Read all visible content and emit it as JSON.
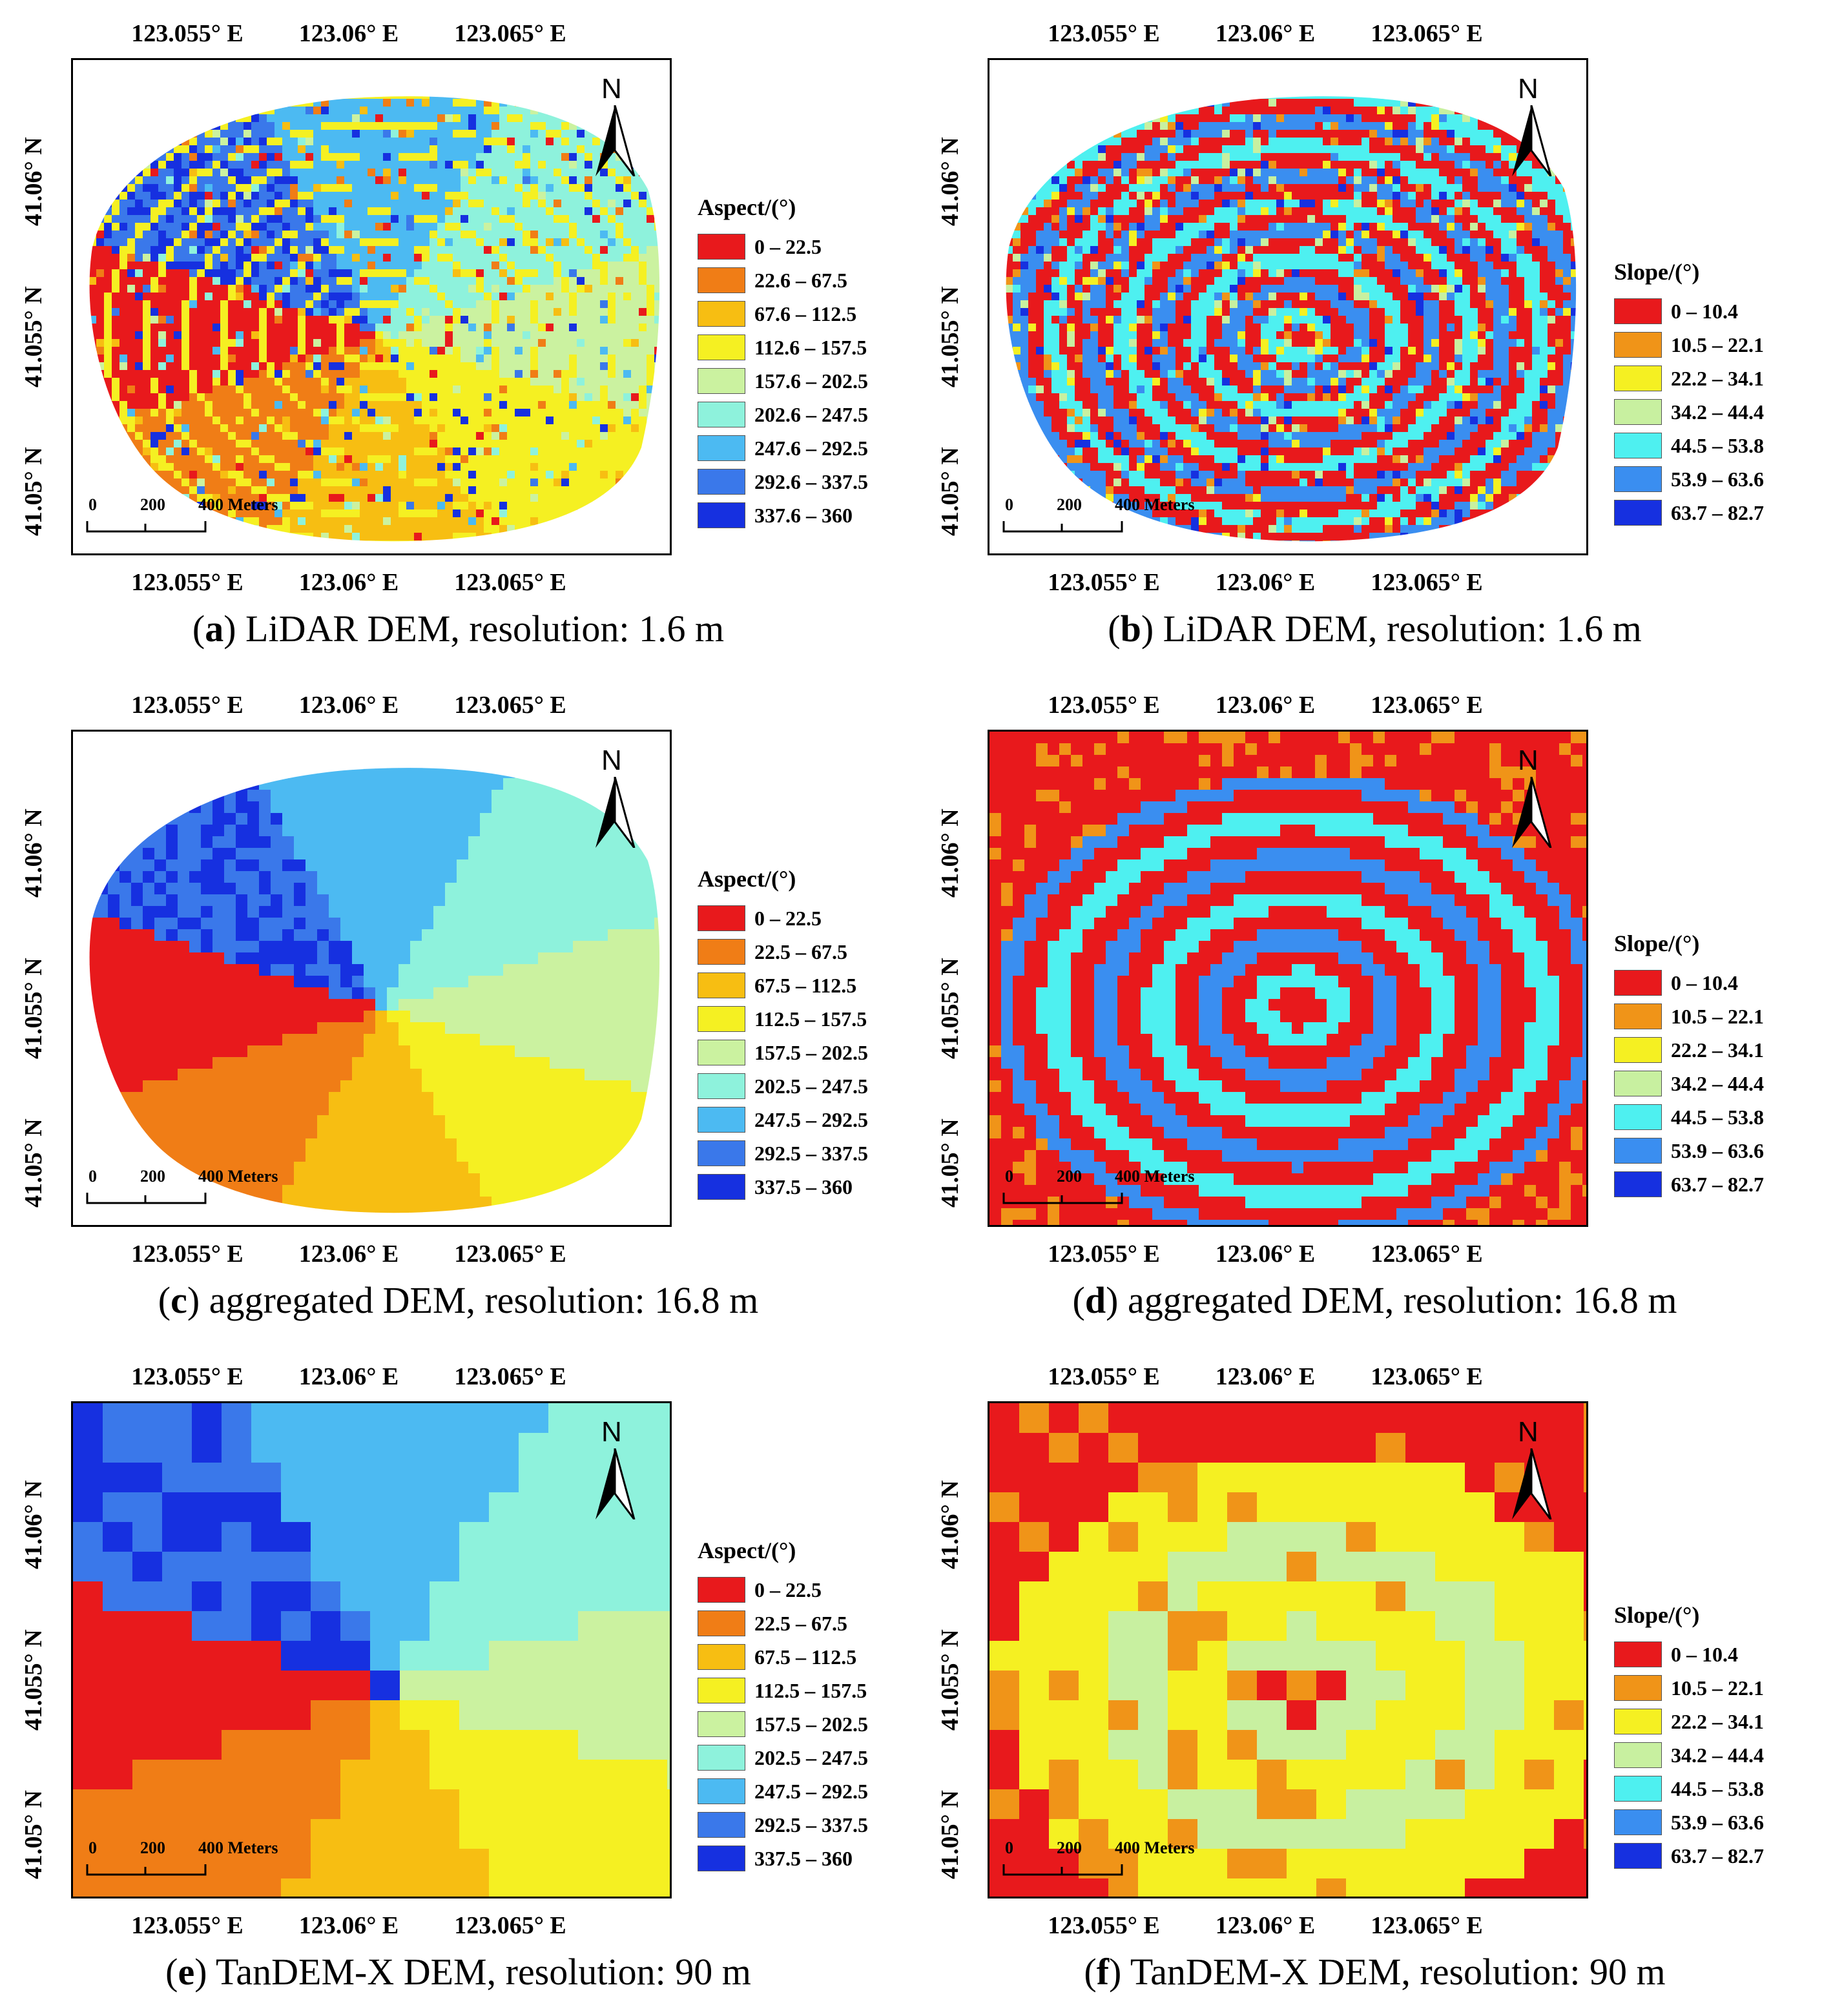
{
  "axes": {
    "x_ticks": [
      "123.055° E",
      "123.06° E",
      "123.065° E"
    ],
    "y_ticks": [
      "41.06° N",
      "41.055° N",
      "41.05° N"
    ]
  },
  "north_label": "N",
  "scalebar": {
    "labels": [
      "0",
      "200",
      "400 Meters"
    ]
  },
  "legends": {
    "aspect_lidar": {
      "title": "Aspect/(°)",
      "items": [
        "0 – 22.5",
        "22.6 – 67.5",
        "67.6 – 112.5",
        "112.6 – 157.5",
        "157.6 – 202.5",
        "202.6 – 247.5",
        "247.6 – 292.5",
        "292.6 – 337.5",
        "337.6 – 360"
      ]
    },
    "aspect": {
      "title": "Aspect/(°)",
      "items": [
        "0 – 22.5",
        "22.5 – 67.5",
        "67.5 – 112.5",
        "112.5 – 157.5",
        "157.5 – 202.5",
        "202.5 – 247.5",
        "247.5 – 292.5",
        "292.5 – 337.5",
        "337.5 – 360"
      ]
    },
    "slope": {
      "title": "Slope/(°)",
      "items": [
        "0 – 10.4",
        "10.5 – 22.1",
        "22.2 – 34.1",
        "34.2 – 44.4",
        "44.5 – 53.8",
        "53.9 – 63.6",
        "63.7 – 82.7"
      ]
    }
  },
  "colors": {
    "aspect": [
      "#e8191c",
      "#f07d16",
      "#f7be12",
      "#f5f022",
      "#cbf2a0",
      "#8ef2dc",
      "#4cbaf2",
      "#3a78ea",
      "#1630e0"
    ],
    "slope": [
      "#e8191c",
      "#f09418",
      "#f5f022",
      "#c8f0a0",
      "#4ef0f0",
      "#3a8ef0",
      "#1630e0"
    ]
  },
  "panels": [
    {
      "label": "a",
      "caption": "LiDAR DEM, resolution: 1.6 m",
      "kind": "aspect",
      "legend": "aspect_lidar"
    },
    {
      "label": "b",
      "caption": "LiDAR DEM, resolution: 1.6 m",
      "kind": "slope",
      "legend": "slope"
    },
    {
      "label": "c",
      "caption": "aggregated DEM, resolution: 16.8 m",
      "kind": "aspect",
      "legend": "aspect"
    },
    {
      "label": "d",
      "caption": "aggregated DEM, resolution: 16.8 m",
      "kind": "slope",
      "legend": "slope"
    },
    {
      "label": "e",
      "caption": "TanDEM-X DEM, resolution: 90 m",
      "kind": "aspect",
      "legend": "aspect"
    },
    {
      "label": "f",
      "caption": "TanDEM-X DEM, resolution: 90 m",
      "kind": "slope",
      "legend": "slope"
    }
  ]
}
